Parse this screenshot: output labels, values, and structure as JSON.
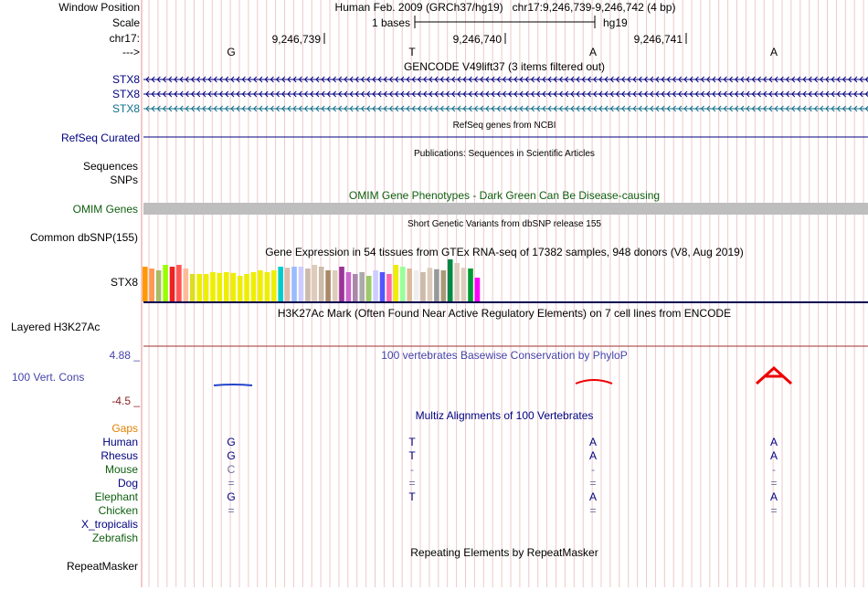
{
  "header": {
    "window_position_label": "Window Position",
    "scale_label": "Scale",
    "chrom_label": "chr17:",
    "arrow_label": "--->",
    "title": "Human Feb. 2009 (GRCh37/hg19)   chr17:9,246,739-9,246,742 (4 bp)",
    "scale_text": "1 bases",
    "assembly": "hg19",
    "ticks": [
      "9,246,739",
      "9,246,740",
      "9,246,741"
    ],
    "bases": [
      "G",
      "T",
      "A",
      "A"
    ]
  },
  "gencode": {
    "title": "GENCODE V49lift37 (3 items filtered out)",
    "rows": [
      {
        "label": "STX8",
        "color": "#000080"
      },
      {
        "label": "STX8",
        "color": "#000080"
      },
      {
        "label": "STX8",
        "color": "#0e6e8a"
      }
    ]
  },
  "refseq": {
    "title": "RefSeq genes from NCBI",
    "label": "RefSeq Curated"
  },
  "publications": {
    "title": "Publications: Sequences in Scientific Articles",
    "label_1": "Sequences",
    "label_2": "SNPs"
  },
  "omim": {
    "title": "OMIM Gene Phenotypes - Dark Green Can Be Disease-causing",
    "label": "OMIM Genes"
  },
  "dbsnp": {
    "title": "Short Genetic Variants from dbSNP release 155",
    "label": "Common dbSNP(155)"
  },
  "gtex": {
    "title": "Gene Expression in 54 tissues from GTEx RNA-seq of 17382 samples, 948 donors (V8, Aug 2019)",
    "label": "STX8",
    "levels": [
      0.95,
      0.9,
      0.85,
      1.0,
      0.95,
      1.0,
      0.9,
      0.75,
      0.75,
      0.75,
      0.8,
      0.78,
      0.8,
      0.78,
      0.7,
      0.75,
      0.8,
      0.85,
      0.8,
      0.85,
      0.95,
      0.92,
      0.95,
      0.95,
      0.9,
      1.0,
      0.95,
      0.85,
      0.85,
      0.95,
      0.8,
      0.75,
      0.8,
      0.7,
      0.85,
      0.8,
      0.75,
      1.0,
      0.95,
      0.9,
      0.85,
      0.8,
      0.92,
      0.88,
      0.85,
      1.15,
      1.05,
      0.92,
      0.9,
      0.65
    ],
    "colors": [
      "#ff9900",
      "#ff9955",
      "#aabb66",
      "#99ff00",
      "#ee2222",
      "#ff5555",
      "#ffbb99",
      "#dddd22",
      "#eeee00",
      "#eeee00",
      "#eeee00",
      "#eeee00",
      "#eeee00",
      "#eeee00",
      "#eeee00",
      "#eeee00",
      "#eeee00",
      "#eeee00",
      "#eeee00",
      "#eeee00",
      "#00cccc",
      "#ddbbaa",
      "#99bbff",
      "#ccccff",
      "#ccbbaa",
      "#ddccbb",
      "#ccbbaa",
      "#aa8866",
      "#ddccbb",
      "#993399",
      "#cc66cc",
      "#aa88aa",
      "#aaaaaa",
      "#99cc66",
      "#ccccff",
      "#5555ff",
      "#ff66aa",
      "#eeee00",
      "#99ff99",
      "#ddbb99",
      "#eeeeee",
      "#ccbbaa",
      "#ddccbb",
      "#999999",
      "#aa9977",
      "#008844",
      "#ddccbb",
      "#ddccbb",
      "#009933",
      "#ff00ff"
    ]
  },
  "h3k27ac": {
    "title": "H3K27Ac Mark (Often Found Near Active Regulatory Elements) on 7 cell lines from ENCODE",
    "label": "Layered H3K27Ac"
  },
  "phylop": {
    "title": "100 vertebrates Basewise Conservation by PhyloP",
    "label": "100 Vert. Cons",
    "max": "4.88 _",
    "min": "-4.5 _"
  },
  "multiz": {
    "title": "Multiz Alignments of 100 Vertebrates",
    "gaps_label": "Gaps",
    "species": [
      {
        "name": "Human",
        "color": "#000080",
        "bases": [
          "G",
          "T",
          "A",
          "A"
        ],
        "base_color": "#000080"
      },
      {
        "name": "Rhesus",
        "color": "#000080",
        "bases": [
          "G",
          "T",
          "A",
          "A"
        ],
        "base_color": "#000080"
      },
      {
        "name": "Mouse",
        "color": "#0f5e0f",
        "bases": [
          "C",
          "-",
          "-",
          "-"
        ],
        "base_color": "#7070a0"
      },
      {
        "name": "Dog",
        "color": "#000080",
        "bases": [
          "=",
          "=",
          "=",
          "="
        ],
        "base_color": "#7070a0"
      },
      {
        "name": "Elephant",
        "color": "#0f5e0f",
        "bases": [
          "G",
          "T",
          "A",
          "A"
        ],
        "base_color": "#000080"
      },
      {
        "name": "Chicken",
        "color": "#0f5e0f",
        "bases": [
          "=",
          "",
          "=",
          "="
        ],
        "base_color": "#7070a0"
      },
      {
        "name": "X_tropicalis",
        "color": "#000080",
        "bases": [
          "",
          "",
          "",
          ""
        ],
        "base_color": "#7070a0"
      },
      {
        "name": "Zebrafish",
        "color": "#0f5e0f",
        "bases": [
          "",
          "",
          "",
          ""
        ],
        "base_color": "#7070a0"
      }
    ]
  },
  "repeatmasker": {
    "title": "Repeating Elements by RepeatMasker",
    "label": "RepeatMasker"
  },
  "colors": {
    "grid_line": "#f0c8c8",
    "grid_blue": "#c8c8f0",
    "track_blue": "#000080",
    "omim_green": "#0f5e0f",
    "omim_bar": "#bebebe",
    "gaps_orange": "#e08000",
    "phylop_blue": "#4444aa",
    "phylop_red": "#ee0000",
    "divider": "#000050"
  }
}
